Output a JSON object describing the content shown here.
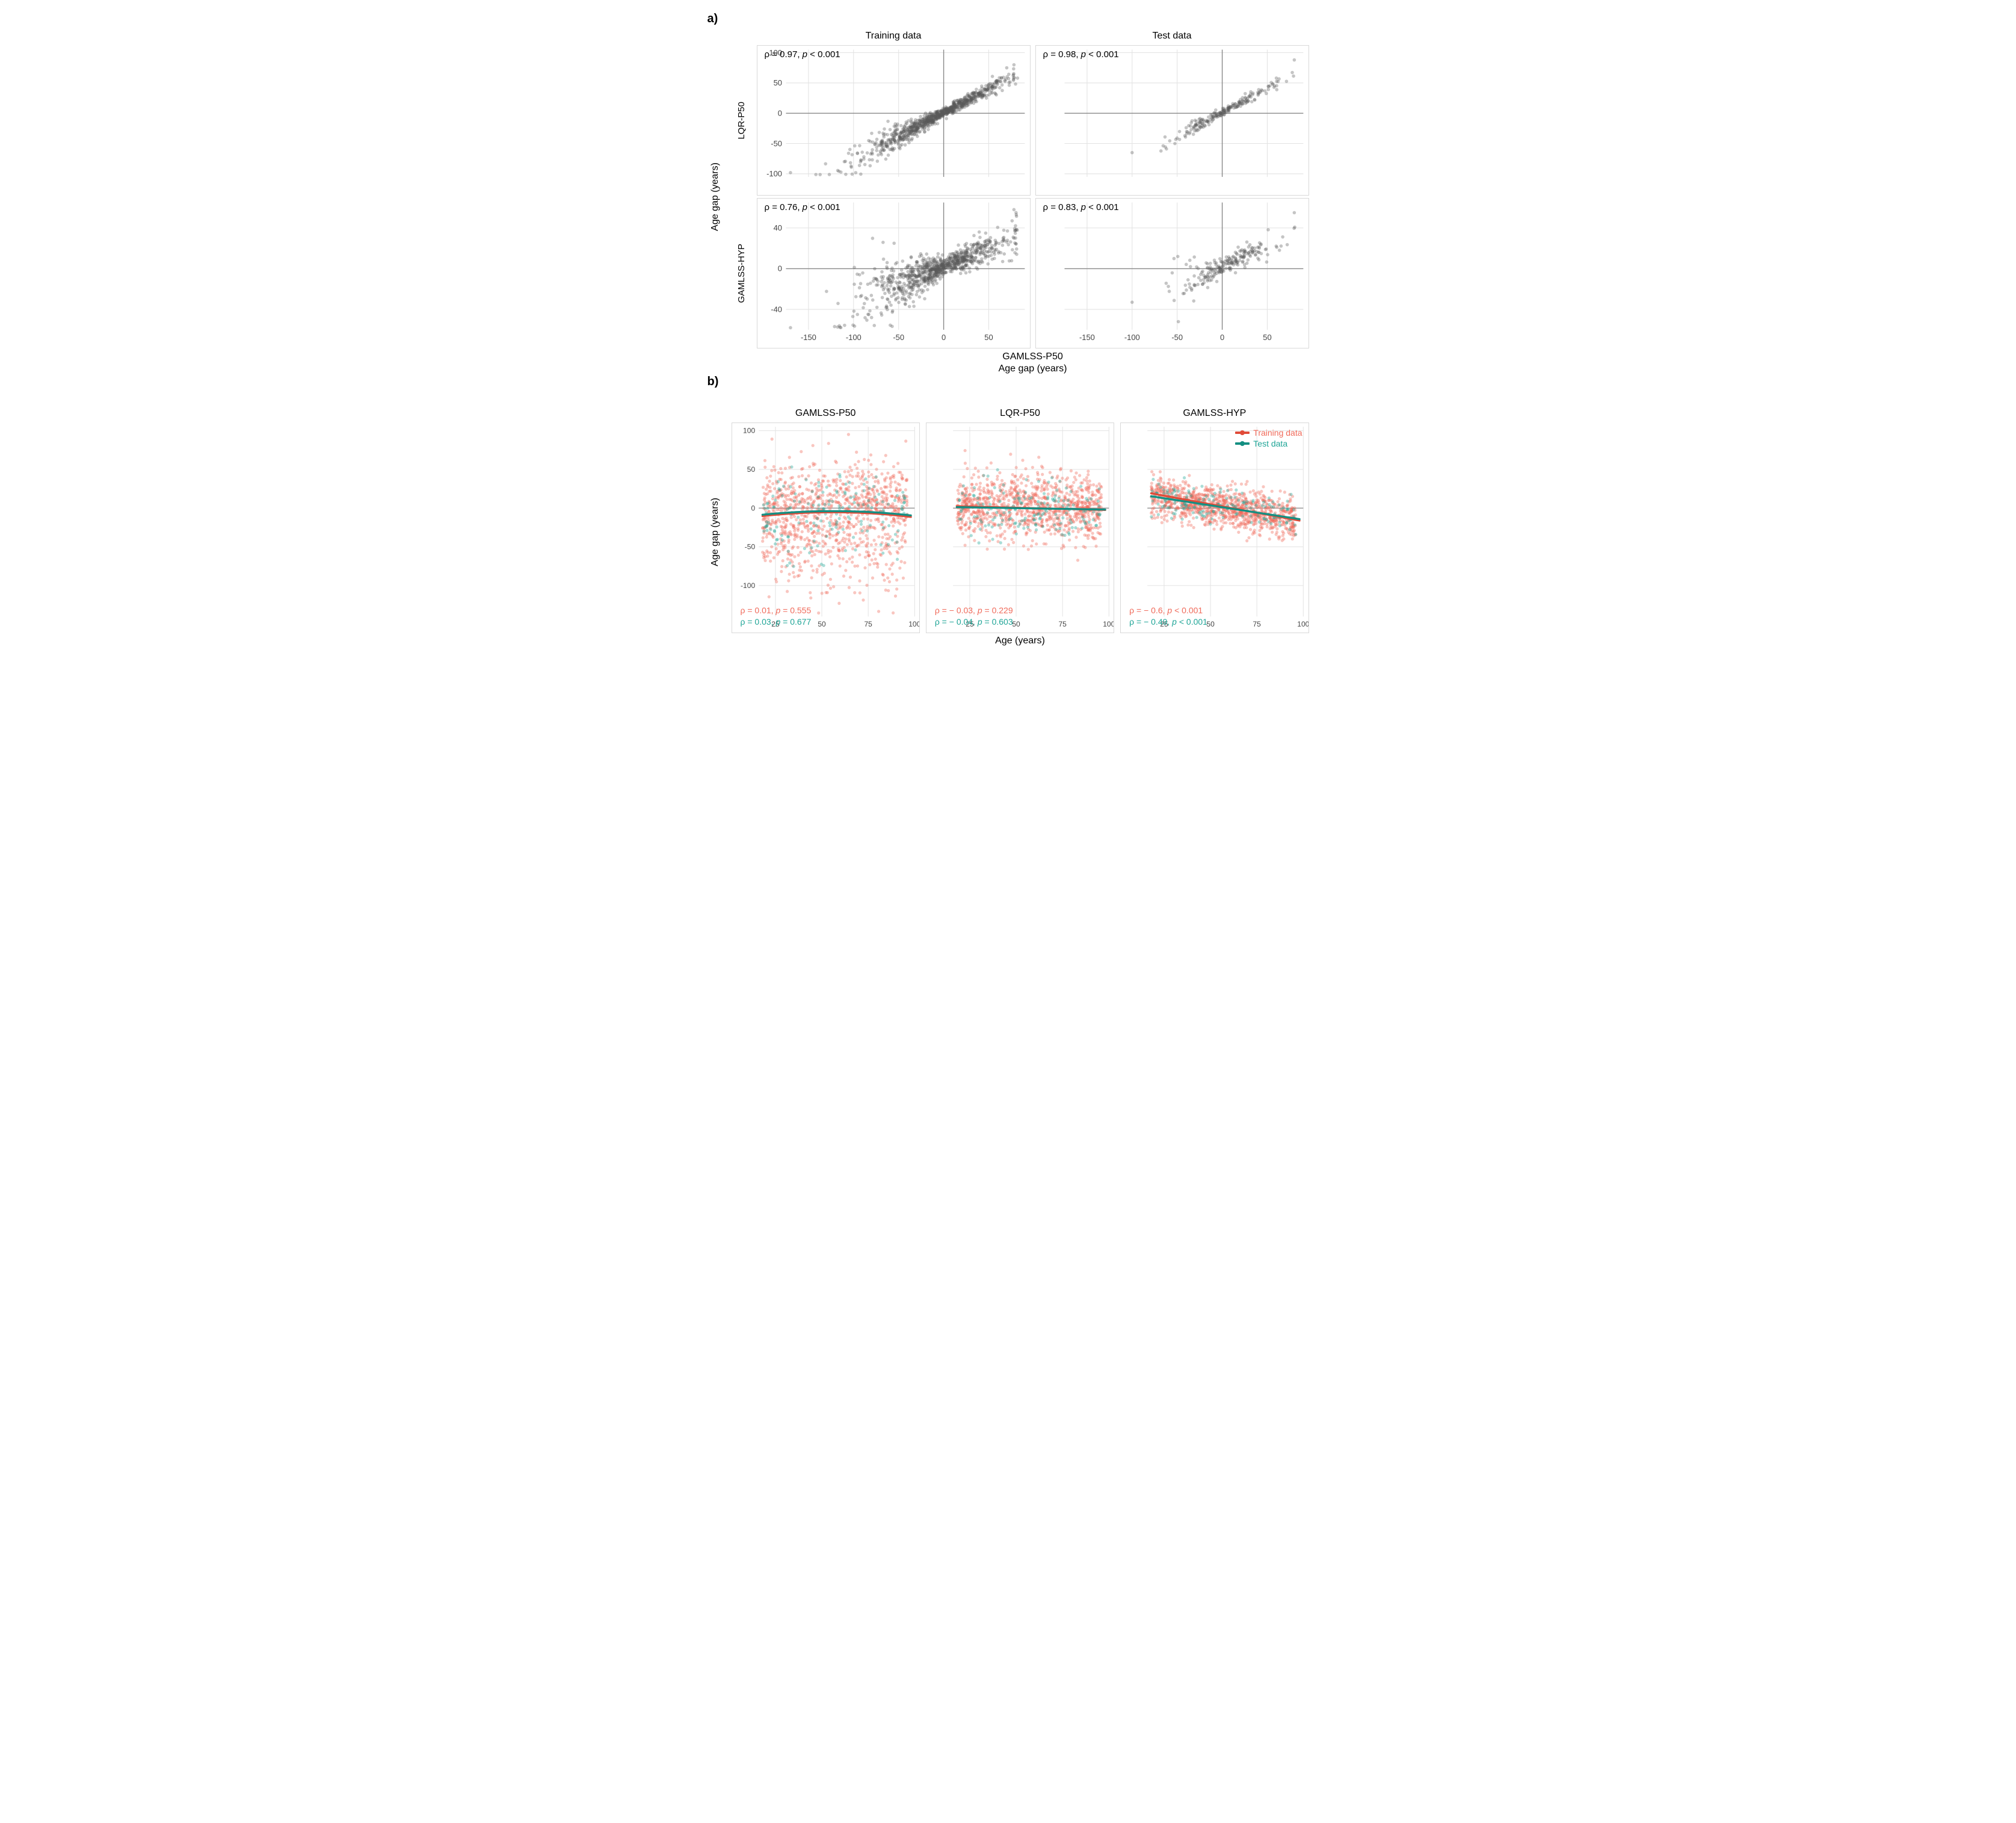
{
  "colors": {
    "background": "#ffffff",
    "panel_border": "#d9d9d9",
    "grid": "#e3e3e3",
    "zero_line": "#888888",
    "point_a": "#5a5a5a",
    "point_a_alpha": 0.35,
    "train": "#f06a5a",
    "test": "#1fa597",
    "train_line": "#e04b38",
    "test_line": "#148f82"
  },
  "typography": {
    "base_font": "Arial, Helvetica, sans-serif",
    "panel_label_pt": 20,
    "facet_head_pt": 16,
    "axis_label_pt": 16,
    "tick_pt": 12,
    "annot_pt": 15
  },
  "panel_a": {
    "label": "a)",
    "y_master_label": "Age gap (years)",
    "x_master_label_top": "GAMLSS-P50",
    "x_master_label_bottom": "Age gap (years)",
    "col_headers": [
      "Training data",
      "Test data"
    ],
    "row_headers": [
      "LQR-P50",
      "GAMLSS-HYP"
    ],
    "xlim": [
      -175,
      90
    ],
    "xticks": [
      -150,
      -100,
      -50,
      0,
      50
    ],
    "rows": [
      {
        "ylim": [
          -105,
          105
        ],
        "yticks": [
          -100,
          -50,
          0,
          50,
          100
        ]
      },
      {
        "ylim": [
          -60,
          65
        ],
        "yticks": [
          -40,
          0,
          40
        ]
      }
    ],
    "facets": [
      {
        "row": 0,
        "col": 0,
        "rho": "0.97",
        "p": "< 0.001",
        "n_points": 900,
        "gen": {
          "slope": 0.78,
          "intercept": 1,
          "sd_base": 3.5,
          "sd_slope": 0.08,
          "x_mean": -8,
          "x_sd": 42,
          "clip_x": [
            -172,
            82
          ],
          "outliers": [
            [
              -170,
              -98
            ],
            [
              78,
              80
            ],
            [
              70,
              75
            ]
          ]
        }
      },
      {
        "row": 0,
        "col": 1,
        "rho": "0.98",
        "p": "< 0.001",
        "n_points": 220,
        "gen": {
          "slope": 0.8,
          "intercept": 1,
          "sd_base": 3.2,
          "sd_slope": 0.06,
          "x_mean": 6,
          "x_sd": 30,
          "clip_x": [
            -120,
            82
          ],
          "outliers": [
            [
              80,
              88
            ],
            [
              -100,
              -65
            ]
          ]
        }
      },
      {
        "row": 1,
        "col": 0,
        "rho": "0.76",
        "p": "< 0.001",
        "n_points": 900,
        "gen": {
          "slope": 0.36,
          "intercept": 2,
          "sd_base": 4.5,
          "sd_slope": 0.13,
          "x_mean": -8,
          "x_sd": 42,
          "clip_x": [
            -172,
            82
          ],
          "outliers": [
            [
              -170,
              -58
            ],
            [
              78,
              58
            ]
          ]
        }
      },
      {
        "row": 1,
        "col": 1,
        "rho": "0.83",
        "p": "< 0.001",
        "n_points": 220,
        "gen": {
          "slope": 0.4,
          "intercept": 2,
          "sd_base": 3.8,
          "sd_slope": 0.1,
          "x_mean": 6,
          "x_sd": 30,
          "clip_x": [
            -120,
            82
          ],
          "outliers": [
            [
              80,
              55
            ],
            [
              -100,
              -33
            ]
          ]
        }
      }
    ]
  },
  "panel_b": {
    "label": "b)",
    "y_master_label": "Age gap (years)",
    "x_label": "Age (years)",
    "col_headers": [
      "GAMLSS-P50",
      "LQR-P50",
      "GAMLSS-HYP"
    ],
    "xlim": [
      16,
      100
    ],
    "xticks": [
      25,
      50,
      75,
      100
    ],
    "ylim": [
      -140,
      105
    ],
    "yticks": [
      -100,
      -50,
      0,
      50,
      100
    ],
    "legend": {
      "train": "Training data",
      "test": "Test data"
    },
    "facets": [
      {
        "stats": {
          "train": {
            "rho": "0.01",
            "p": "= 0.555"
          },
          "test": {
            "rho": "0.03",
            "p": "= 0.677"
          }
        },
        "train": {
          "n": 1000,
          "y_sd": 30,
          "y_mean": -6,
          "slope": 0.0,
          "skew_down": 1.6
        },
        "test": {
          "n": 170,
          "y_sd": 24,
          "y_mean": -2,
          "slope": 0.0,
          "skew_down": 1.2
        },
        "fit_train": {
          "a": -16,
          "b": 0.38,
          "c": -0.0034
        },
        "fit_test": {
          "a": -14,
          "b": 0.36,
          "c": -0.0032
        }
      },
      {
        "stats": {
          "train": {
            "rho": "− 0.03",
            "p": "= 0.229"
          },
          "test": {
            "rho": "− 0.04",
            "p": "= 0.603"
          }
        },
        "train": {
          "n": 1000,
          "y_sd": 22,
          "y_mean": 0,
          "slope": -0.02,
          "skew_down": 1.0
        },
        "test": {
          "n": 170,
          "y_sd": 20,
          "y_mean": 0,
          "slope": -0.02,
          "skew_down": 1.0
        },
        "fit_train": {
          "a": 3.5,
          "b": -0.06,
          "c": 0.0
        },
        "fit_test": {
          "a": 2.0,
          "b": -0.04,
          "c": 0.0
        }
      },
      {
        "stats": {
          "train": {
            "rho": "− 0.6",
            "p": "< 0.001"
          },
          "test": {
            "rho": "− 0.49",
            "p": "< 0.001"
          }
        },
        "train": {
          "n": 1000,
          "y_sd": 13,
          "y_mean": 2,
          "slope": -0.41,
          "skew_down": 1.0
        },
        "test": {
          "n": 170,
          "y_sd": 13,
          "y_mean": 2,
          "slope": -0.34,
          "skew_down": 1.0
        },
        "fit_train": {
          "a": 27,
          "b": -0.44,
          "c": 0.0
        },
        "fit_test": {
          "a": 22,
          "b": -0.37,
          "c": 0.0
        }
      }
    ]
  }
}
